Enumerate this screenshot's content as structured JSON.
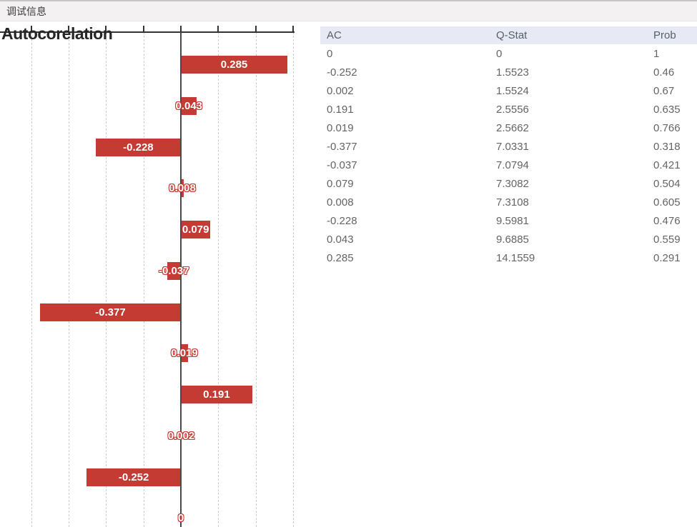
{
  "tab_bar": {
    "title": "调试信息"
  },
  "chart_data": {
    "type": "bar",
    "orientation": "horizontal",
    "title": "Autocorelation",
    "series_name": "AC",
    "labels": [
      "0.285",
      "0.043",
      "-0.228",
      "0.008",
      "0.079",
      "-0.037",
      "-0.377",
      "0.019",
      "0.191",
      "0.002",
      "-0.252",
      "0"
    ],
    "values": [
      0.285,
      0.043,
      -0.228,
      0.008,
      0.079,
      -0.037,
      -0.377,
      0.019,
      0.191,
      0.002,
      -0.252,
      0
    ],
    "x_ticks": [
      -0.4,
      -0.3,
      -0.2,
      -0.1,
      0,
      0.1,
      0.2,
      0.3
    ],
    "xlim": [
      -0.48,
      0.36
    ],
    "grid": "vertical-dashed",
    "legend": "none",
    "bar_color": "#C33B32",
    "label_color": "#FFFFFF",
    "axis_color": "#333333",
    "grid_color": "#CDCDCD"
  },
  "table": {
    "header_bg": "#E7EAF5",
    "columns": [
      "AC",
      "Q-Stat",
      "Prob"
    ],
    "rows": [
      [
        "0",
        "0",
        "1"
      ],
      [
        "-0.252",
        "1.5523",
        "0.46"
      ],
      [
        "0.002",
        "1.5524",
        "0.67"
      ],
      [
        "0.191",
        "2.5556",
        "0.635"
      ],
      [
        "0.019",
        "2.5662",
        "0.766"
      ],
      [
        "-0.377",
        "7.0331",
        "0.318"
      ],
      [
        "-0.037",
        "7.0794",
        "0.421"
      ],
      [
        "0.079",
        "7.3082",
        "0.504"
      ],
      [
        "0.008",
        "7.3108",
        "0.605"
      ],
      [
        "-0.228",
        "9.5981",
        "0.476"
      ],
      [
        "0.043",
        "9.6885",
        "0.559"
      ],
      [
        "0.285",
        "14.1559",
        "0.291"
      ]
    ]
  }
}
